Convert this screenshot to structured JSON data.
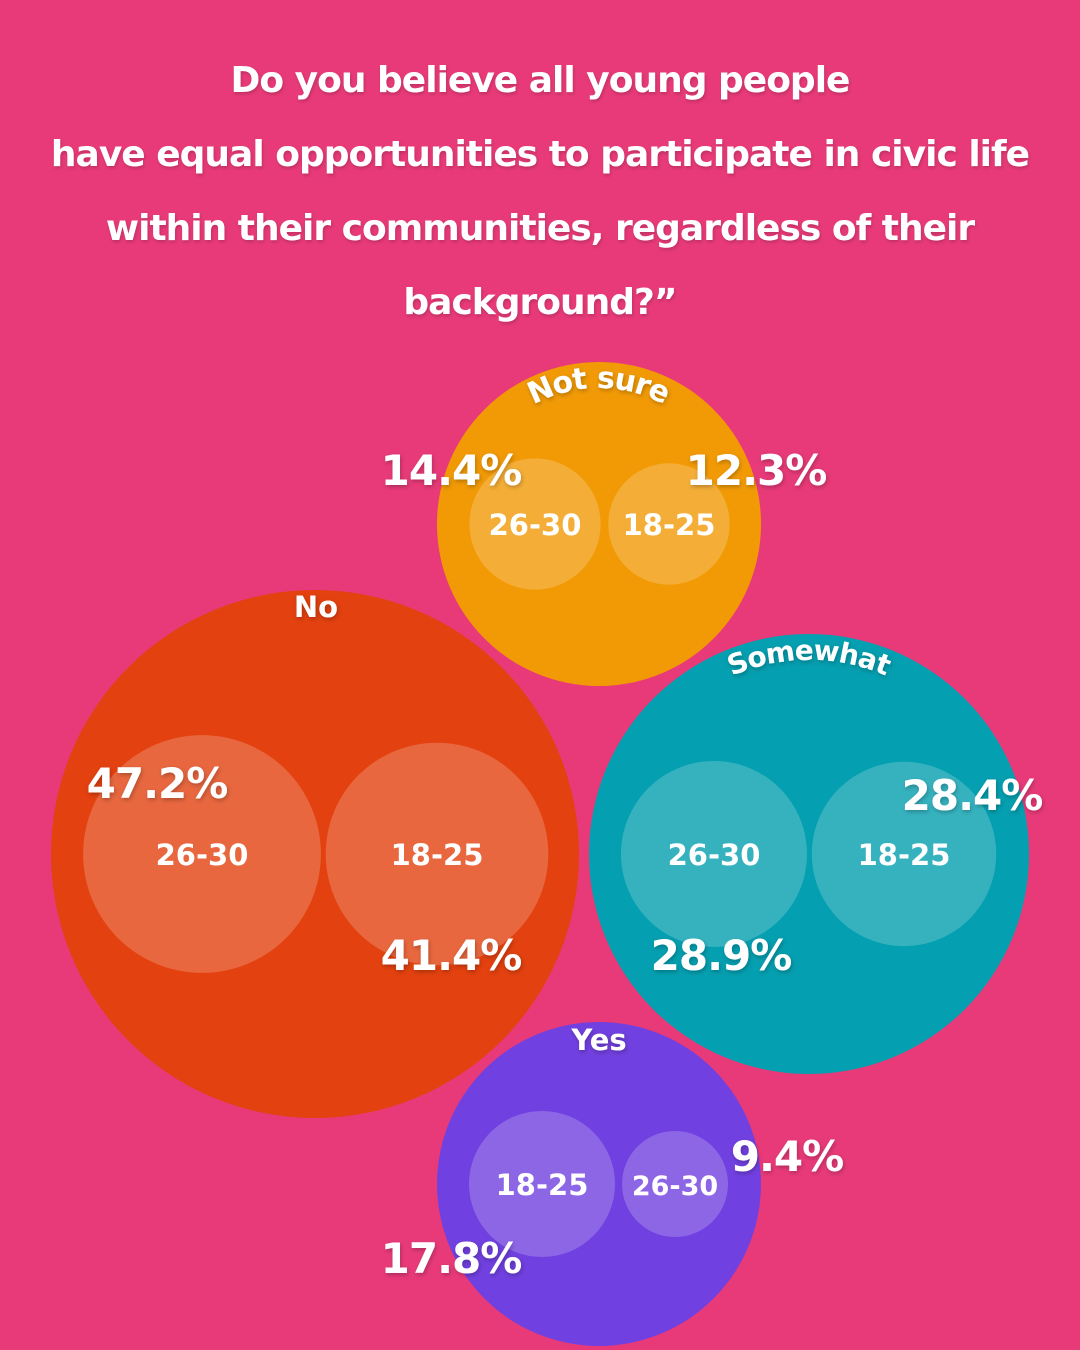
{
  "colors": {
    "background": "#e83a78",
    "no": "#e3410f",
    "not_sure": "#f29a06",
    "somewhat": "#049fb0",
    "yes": "#7140e0"
  },
  "chart_data": {
    "type": "bubble",
    "title_lines": [
      "Do you believe all young people",
      "have equal opportunities to participate in civic life",
      "within their communities, regardless of their",
      "background?”"
    ],
    "series_names": [
      "18-25",
      "26-30"
    ],
    "categories": [
      {
        "name": "Not sure",
        "values": {
          "18-25": 12.3,
          "26-30": 14.4
        },
        "labels": {
          "18-25": "12.3%",
          "26-30": "14.4%"
        }
      },
      {
        "name": "No",
        "values": {
          "18-25": 41.4,
          "26-30": 47.2
        },
        "labels": {
          "18-25": "41.4%",
          "26-30": "47.2%"
        }
      },
      {
        "name": "Somewhat",
        "values": {
          "18-25": 28.4,
          "26-30": 28.9
        },
        "labels": {
          "18-25": "28.4%",
          "26-30": "28.9%"
        }
      },
      {
        "name": "Yes",
        "values": {
          "18-25": 17.8,
          "26-30": 9.4
        },
        "labels": {
          "18-25": "17.8%",
          "26-30": "9.4%"
        }
      }
    ],
    "unit": "%"
  }
}
